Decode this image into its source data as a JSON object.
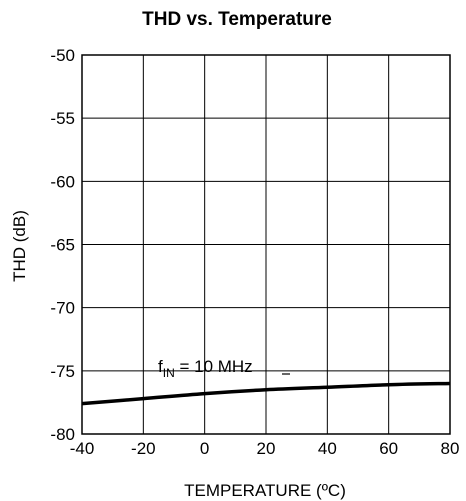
{
  "chart_data": {
    "type": "line",
    "title": "THD vs. Temperature",
    "xlabel": "TEMPERATURE (ºC)",
    "ylabel": "THD (dB)",
    "xlim": [
      -40,
      80
    ],
    "ylim": [
      -80,
      -50
    ],
    "xticks": [
      -40,
      -20,
      0,
      20,
      40,
      60,
      80
    ],
    "yticks": [
      -50,
      -55,
      -60,
      -65,
      -70,
      -75,
      -80
    ],
    "grid": true,
    "legend": "none",
    "series": [
      {
        "x": [
          -40,
          -20,
          0,
          20,
          40,
          60,
          80
        ],
        "y": [
          -77.6,
          -77.2,
          -76.8,
          -76.5,
          -76.3,
          -76.1,
          -76.0
        ],
        "color": "#000000"
      }
    ],
    "annotations": [
      {
        "text_main": "f",
        "text_sub": "IN",
        "text_rest": " = 10 MHz"
      }
    ]
  }
}
